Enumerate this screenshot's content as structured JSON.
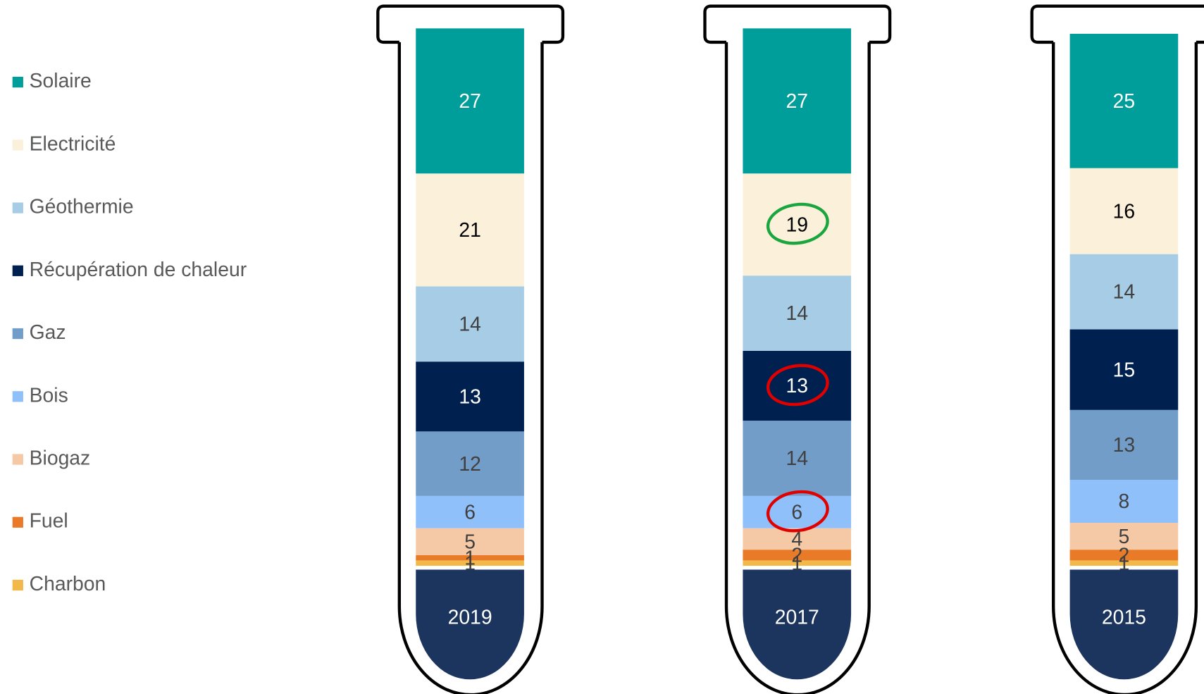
{
  "chart_data": {
    "type": "stacked-bar",
    "categories": [
      "2019",
      "2017",
      "2015"
    ],
    "series": [
      {
        "name": "Solaire",
        "color": "#009e9a",
        "label_color": "#ffffff",
        "values": [
          27,
          27,
          25
        ]
      },
      {
        "name": "Electricité",
        "color": "#fbf1da",
        "label_color": "#000000",
        "values": [
          21,
          19,
          16
        ]
      },
      {
        "name": "Géothermie",
        "color": "#a7cde6",
        "label_color": "#404040",
        "values": [
          14,
          14,
          14
        ]
      },
      {
        "name": "Récupération de chaleur",
        "color": "#00214f",
        "label_color": "#ffffff",
        "values": [
          13,
          13,
          15
        ]
      },
      {
        "name": "Gaz",
        "color": "#739dc9",
        "label_color": "#404040",
        "values": [
          12,
          14,
          13
        ]
      },
      {
        "name": "Bois",
        "color": "#8fc0fa",
        "label_color": "#404040",
        "values": [
          6,
          6,
          8
        ]
      },
      {
        "name": "Biogaz",
        "color": "#f6c9a6",
        "label_color": "#404040",
        "values": [
          5,
          4,
          5
        ]
      },
      {
        "name": "Fuel",
        "color": "#e97a27",
        "label_color": "#404040",
        "values": [
          1,
          2,
          2
        ]
      },
      {
        "name": "Charbon",
        "color": "#f2b94a",
        "label_color": "#404040",
        "values": [
          1,
          1,
          1
        ]
      }
    ],
    "bulb_color": "#1c355e"
  }
}
